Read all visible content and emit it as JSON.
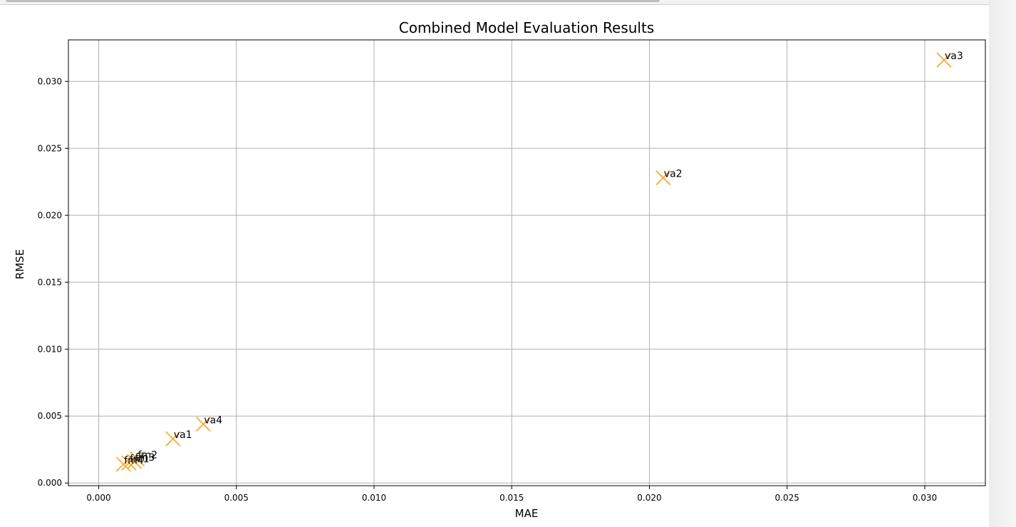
{
  "chart_data": {
    "type": "scatter",
    "title": "Combined Model Evaluation Results",
    "xlabel": "MAE",
    "ylabel": "RMSE",
    "xlim": [
      -0.0011,
      0.0322
    ],
    "ylim": [
      -0.0002,
      0.0331
    ],
    "xticks": [
      0.0,
      0.005,
      0.01,
      0.015,
      0.02,
      0.025,
      0.03
    ],
    "xtick_labels": [
      "0.000",
      "0.005",
      "0.010",
      "0.015",
      "0.020",
      "0.025",
      "0.030"
    ],
    "yticks": [
      0.0,
      0.005,
      0.01,
      0.015,
      0.02,
      0.025,
      0.03
    ],
    "ytick_labels": [
      "0.000",
      "0.005",
      "0.010",
      "0.015",
      "0.020",
      "0.025",
      "0.030"
    ],
    "grid": true,
    "marker": "x",
    "color": "#f5a623",
    "points": [
      {
        "label": "va3",
        "x": 0.0307,
        "y": 0.0316
      },
      {
        "label": "va2",
        "x": 0.0205,
        "y": 0.0228
      },
      {
        "label": "va4",
        "x": 0.0038,
        "y": 0.0044
      },
      {
        "label": "va1",
        "x": 0.0027,
        "y": 0.0033
      },
      {
        "label": "fm2",
        "x": 0.0014,
        "y": 0.0018
      },
      {
        "label": "fm3",
        "x": 0.0013,
        "y": 0.0016
      },
      {
        "label": "fm1",
        "x": 0.0011,
        "y": 0.0015
      },
      {
        "label": "fm4",
        "x": 0.0009,
        "y": 0.0014
      }
    ]
  }
}
